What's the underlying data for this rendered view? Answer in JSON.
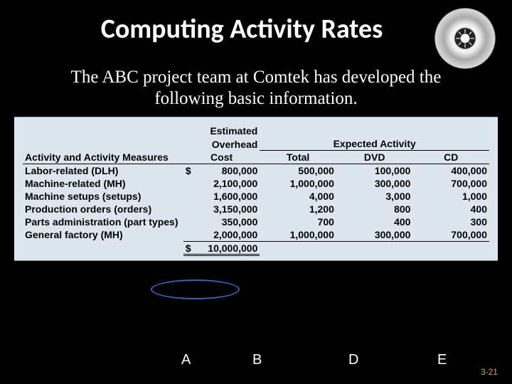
{
  "slide": {
    "title": "Computing Activity Rates",
    "subtitle": "The ABC project team at Comtek has developed the following basic information.",
    "page_number": "3-21",
    "background_color": "#000000",
    "title_color": "#ffffff",
    "subtitle_color": "#ffffff"
  },
  "columnLabels": {
    "a": "A",
    "b": "B",
    "d": "D",
    "e": "E"
  },
  "table": {
    "background_color": "#dde6ef",
    "text_color": "#000000",
    "font_weight": "bold",
    "font_size_pt": 11,
    "header": {
      "activity": "Activity and Activity Measures",
      "cost_line1": "Estimated",
      "cost_line2": "Overhead",
      "cost_line3": "Cost",
      "expected": "Expected Activity",
      "sub": {
        "total": "Total",
        "dvd": "DVD",
        "cd": "CD"
      }
    },
    "rows": [
      {
        "activity": "Labor-related (DLH)",
        "cost_prefix": "$",
        "cost": "800,000",
        "total": "500,000",
        "dvd": "100,000",
        "cd": "400,000"
      },
      {
        "activity": "Machine-related (MH)",
        "cost_prefix": "",
        "cost": "2,100,000",
        "total": "1,000,000",
        "dvd": "300,000",
        "cd": "700,000"
      },
      {
        "activity": "Machine setups (setups)",
        "cost_prefix": "",
        "cost": "1,600,000",
        "total": "4,000",
        "dvd": "3,000",
        "cd": "1,000"
      },
      {
        "activity": "Production orders (orders)",
        "cost_prefix": "",
        "cost": "3,150,000",
        "total": "1,200",
        "dvd": "800",
        "cd": "400"
      },
      {
        "activity": "Parts administration (part types)",
        "cost_prefix": "",
        "cost": "350,000",
        "total": "700",
        "dvd": "400",
        "cd": "300"
      },
      {
        "activity": "General factory (MH)",
        "cost_prefix": "",
        "cost": "2,000,000",
        "total": "1,000,000",
        "dvd": "300,000",
        "cd": "700,000"
      }
    ],
    "total_row": {
      "activity": "",
      "cost_prefix": "$",
      "cost": "10,000,000",
      "total": "",
      "dvd": "",
      "cd": ""
    },
    "highlight": {
      "color": "#3a5fb5",
      "shape": "ellipse"
    }
  },
  "cd_icon": {
    "name": "compact-disc-icon",
    "highlight_color": "#ffffff",
    "shadow_color": "#555555"
  }
}
